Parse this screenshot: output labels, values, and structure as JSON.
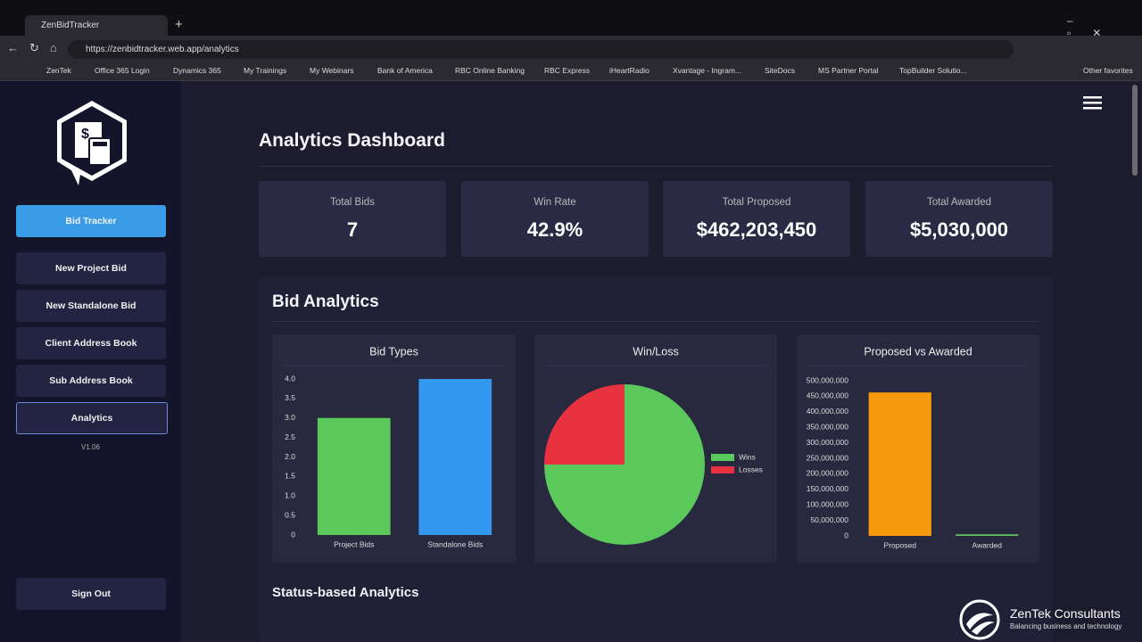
{
  "browser": {
    "tab_title": "ZenBidTracker",
    "url": "https://zenbidtracker.web.app/analytics",
    "bookmarks": [
      "ZenTek",
      "Office 365 Login",
      "Dynamics 365",
      "My Trainings",
      "My Webinars",
      "Bank of America",
      "RBC Online Banking",
      "RBC Express",
      "iHeartRadio",
      "Xvantage - Ingram...",
      "SiteDocs",
      "MS Partner Portal",
      "TopBuilder Solutio..."
    ],
    "other_favorites": "Other favorites"
  },
  "sidebar": {
    "nav": [
      "Bid Tracker",
      "New Project Bid",
      "New Standalone Bid",
      "Client Address Book",
      "Sub Address Book",
      "Analytics"
    ],
    "version": "V1.06",
    "sign_out": "Sign Out"
  },
  "dashboard": {
    "title": "Analytics Dashboard",
    "stats": [
      {
        "label": "Total Bids",
        "value": "7"
      },
      {
        "label": "Win Rate",
        "value": "42.9%"
      },
      {
        "label": "Total Proposed",
        "value": "$462,203,450"
      },
      {
        "label": "Total Awarded",
        "value": "$5,030,000"
      }
    ],
    "section_title": "Bid Analytics",
    "status_title": "Status-based Analytics"
  },
  "watermark": {
    "name": "ZenTek Consultants",
    "tagline": "Balancing business and technology"
  },
  "chart_data": [
    {
      "type": "bar",
      "title": "Bid Types",
      "categories": [
        "Project Bids",
        "Standalone Bids"
      ],
      "values": [
        3,
        4
      ],
      "colors": [
        "#5ac85a",
        "#3399f0"
      ],
      "ylim": [
        0,
        4
      ],
      "yticks": [
        0,
        0.5,
        {
          "value": 1,
          "label": "1.0"
        },
        1.5,
        {
          "value": 2,
          "label": "2.0"
        },
        2.5,
        {
          "value": 3,
          "label": "3.0"
        },
        3.5,
        {
          "value": 4,
          "label": "4.0"
        }
      ]
    },
    {
      "type": "pie",
      "title": "Win/Loss",
      "categories": [
        "Wins",
        "Losses"
      ],
      "values": [
        3,
        1
      ],
      "colors": [
        "#5ac85a",
        "#e8323f"
      ],
      "legend": "right"
    },
    {
      "type": "bar",
      "title": "Proposed vs Awarded",
      "categories": [
        "Proposed",
        "Awarded"
      ],
      "values": [
        462203450,
        5030000
      ],
      "colors": [
        "#f59a0c",
        "#5ac85a"
      ],
      "ylim": [
        0,
        500000000
      ],
      "yticks": [
        0,
        {
          "value": 50000000,
          "label": "50,000,000"
        },
        {
          "value": 100000000,
          "label": "100,000,000"
        },
        {
          "value": 150000000,
          "label": "150,000,000"
        },
        {
          "value": 200000000,
          "label": "200,000,000"
        },
        {
          "value": 250000000,
          "label": "250,000,000"
        },
        {
          "value": 300000000,
          "label": "300,000,000"
        },
        {
          "value": 350000000,
          "label": "350,000,000"
        },
        {
          "value": 400000000,
          "label": "400,000,000"
        },
        {
          "value": 450000000,
          "label": "450,000,000"
        },
        {
          "value": 500000000,
          "label": "500,000,000"
        }
      ]
    }
  ]
}
